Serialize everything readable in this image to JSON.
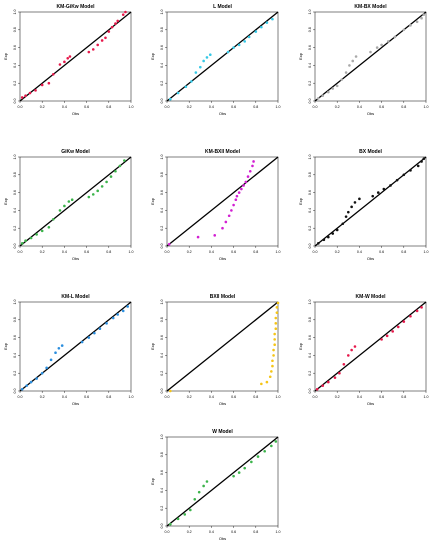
{
  "chart_data": [
    {
      "type": "scatter",
      "title": "KM-GiKw Model",
      "xlabel": "Obs",
      "ylabel": "Exp",
      "xlim": [
        0,
        1
      ],
      "ylim": [
        0,
        1
      ],
      "xticks": [
        "0.0",
        "0.2",
        "0.4",
        "0.6",
        "0.8",
        "1.0"
      ],
      "yticks": [
        "0.0",
        "0.2",
        "0.4",
        "0.6",
        "0.8",
        "1.0"
      ],
      "reference_line": "y = x",
      "color": "#e6194b",
      "points": [
        [
          0.02,
          0.04
        ],
        [
          0.05,
          0.06
        ],
        [
          0.09,
          0.09
        ],
        [
          0.14,
          0.12
        ],
        [
          0.2,
          0.18
        ],
        [
          0.26,
          0.2
        ],
        [
          0.3,
          0.3
        ],
        [
          0.36,
          0.41
        ],
        [
          0.4,
          0.44
        ],
        [
          0.43,
          0.48
        ],
        [
          0.45,
          0.5
        ],
        [
          0.62,
          0.55
        ],
        [
          0.66,
          0.58
        ],
        [
          0.7,
          0.63
        ],
        [
          0.74,
          0.68
        ],
        [
          0.77,
          0.71
        ],
        [
          0.8,
          0.78
        ],
        [
          0.83,
          0.83
        ],
        [
          0.86,
          0.87
        ],
        [
          0.88,
          0.9
        ],
        [
          0.93,
          0.97
        ],
        [
          0.95,
          1.0
        ]
      ]
    },
    {
      "type": "scatter",
      "title": "L Model",
      "xlabel": "Obs",
      "ylabel": "Exp",
      "xlim": [
        0,
        1
      ],
      "ylim": [
        0,
        1
      ],
      "xticks": [
        "0.0",
        "0.2",
        "0.4",
        "0.6",
        "0.8",
        "1.0"
      ],
      "yticks": [
        "0.0",
        "0.2",
        "0.4",
        "0.6",
        "0.8",
        "1.0"
      ],
      "reference_line": "y = x",
      "color": "#35c8e6",
      "points": [
        [
          0.03,
          0.02
        ],
        [
          0.1,
          0.09
        ],
        [
          0.17,
          0.16
        ],
        [
          0.22,
          0.22
        ],
        [
          0.26,
          0.32
        ],
        [
          0.3,
          0.38
        ],
        [
          0.33,
          0.45
        ],
        [
          0.36,
          0.49
        ],
        [
          0.39,
          0.52
        ],
        [
          0.55,
          0.55
        ],
        [
          0.6,
          0.6
        ],
        [
          0.65,
          0.63
        ],
        [
          0.7,
          0.67
        ],
        [
          0.74,
          0.72
        ],
        [
          0.8,
          0.78
        ],
        [
          0.85,
          0.83
        ],
        [
          0.9,
          0.88
        ],
        [
          0.95,
          0.92
        ]
      ]
    },
    {
      "type": "scatter",
      "title": "KM-BX Model",
      "xlabel": "Obs",
      "ylabel": "Exp",
      "xlim": [
        0,
        1
      ],
      "ylim": [
        0,
        1
      ],
      "xticks": [
        "0.0",
        "0.2",
        "0.4",
        "0.6",
        "0.8",
        "1.0"
      ],
      "yticks": [
        "0.0",
        "0.2",
        "0.4",
        "0.6",
        "0.8",
        "1.0"
      ],
      "reference_line": "y = x",
      "color": "#a9a9a9",
      "points": [
        [
          0.03,
          0.03
        ],
        [
          0.07,
          0.06
        ],
        [
          0.12,
          0.1
        ],
        [
          0.16,
          0.14
        ],
        [
          0.2,
          0.17
        ],
        [
          0.24,
          0.24
        ],
        [
          0.28,
          0.32
        ],
        [
          0.31,
          0.4
        ],
        [
          0.34,
          0.45
        ],
        [
          0.37,
          0.5
        ],
        [
          0.5,
          0.55
        ],
        [
          0.56,
          0.6
        ],
        [
          0.6,
          0.63
        ],
        [
          0.66,
          0.67
        ],
        [
          0.72,
          0.72
        ],
        [
          0.8,
          0.8
        ],
        [
          0.86,
          0.85
        ],
        [
          0.92,
          0.89
        ],
        [
          0.96,
          0.93
        ],
        [
          0.98,
          0.97
        ]
      ]
    },
    {
      "type": "scatter",
      "title": "GiKw Model",
      "xlabel": "Obs",
      "ylabel": "Exp",
      "xlim": [
        0,
        1
      ],
      "ylim": [
        0,
        1
      ],
      "xticks": [
        "0.0",
        "0.2",
        "0.4",
        "0.6",
        "0.8",
        "1.0"
      ],
      "yticks": [
        "0.0",
        "0.2",
        "0.4",
        "0.6",
        "0.8",
        "1.0"
      ],
      "reference_line": "y = x",
      "color": "#3cb44b",
      "points": [
        [
          0.02,
          0.03
        ],
        [
          0.05,
          0.06
        ],
        [
          0.1,
          0.09
        ],
        [
          0.15,
          0.13
        ],
        [
          0.2,
          0.17
        ],
        [
          0.26,
          0.21
        ],
        [
          0.3,
          0.3
        ],
        [
          0.36,
          0.4
        ],
        [
          0.4,
          0.45
        ],
        [
          0.44,
          0.5
        ],
        [
          0.47,
          0.52
        ],
        [
          0.62,
          0.55
        ],
        [
          0.66,
          0.58
        ],
        [
          0.7,
          0.62
        ],
        [
          0.74,
          0.67
        ],
        [
          0.78,
          0.72
        ],
        [
          0.82,
          0.78
        ],
        [
          0.86,
          0.84
        ],
        [
          0.9,
          0.9
        ],
        [
          0.94,
          0.96
        ]
      ]
    },
    {
      "type": "scatter",
      "title": "KM-BXII Model",
      "xlabel": "Obs",
      "ylabel": "Exp",
      "xlim": [
        0,
        1
      ],
      "ylim": [
        0,
        1
      ],
      "xticks": [
        "0.0",
        "0.2",
        "0.4",
        "0.6",
        "0.8",
        "1.0"
      ],
      "yticks": [
        "0.0",
        "0.2",
        "0.4",
        "0.6",
        "0.8",
        "1.0"
      ],
      "reference_line": "y = x",
      "color": "#d21fd2",
      "points": [
        [
          0.02,
          0.02
        ],
        [
          0.28,
          0.1
        ],
        [
          0.43,
          0.12
        ],
        [
          0.5,
          0.2
        ],
        [
          0.53,
          0.27
        ],
        [
          0.56,
          0.34
        ],
        [
          0.58,
          0.4
        ],
        [
          0.6,
          0.46
        ],
        [
          0.62,
          0.52
        ],
        [
          0.63,
          0.56
        ],
        [
          0.65,
          0.6
        ],
        [
          0.67,
          0.64
        ],
        [
          0.69,
          0.68
        ],
        [
          0.71,
          0.72
        ],
        [
          0.73,
          0.78
        ],
        [
          0.75,
          0.84
        ],
        [
          0.77,
          0.9
        ],
        [
          0.78,
          0.95
        ]
      ]
    },
    {
      "type": "scatter",
      "title": "BX Model",
      "xlabel": "Obs",
      "ylabel": "Exp",
      "xlim": [
        0,
        1
      ],
      "ylim": [
        0,
        1
      ],
      "xticks": [
        "0.0",
        "0.2",
        "0.4",
        "0.6",
        "0.8",
        "1.0"
      ],
      "yticks": [
        "0.0",
        "0.2",
        "0.4",
        "0.6",
        "0.8",
        "1.0"
      ],
      "reference_line": "y = x",
      "color": "#111111",
      "points": [
        [
          0.03,
          0.03
        ],
        [
          0.08,
          0.07
        ],
        [
          0.12,
          0.1
        ],
        [
          0.16,
          0.14
        ],
        [
          0.2,
          0.18
        ],
        [
          0.25,
          0.25
        ],
        [
          0.28,
          0.33
        ],
        [
          0.3,
          0.38
        ],
        [
          0.33,
          0.44
        ],
        [
          0.36,
          0.49
        ],
        [
          0.4,
          0.53
        ],
        [
          0.52,
          0.56
        ],
        [
          0.57,
          0.6
        ],
        [
          0.62,
          0.64
        ],
        [
          0.68,
          0.68
        ],
        [
          0.74,
          0.74
        ],
        [
          0.8,
          0.8
        ],
        [
          0.86,
          0.85
        ],
        [
          0.93,
          0.9
        ],
        [
          0.96,
          0.95
        ],
        [
          0.98,
          0.98
        ]
      ]
    },
    {
      "type": "scatter",
      "title": "KM-L Model",
      "xlabel": "Obs",
      "ylabel": "Exp",
      "xlim": [
        0,
        1
      ],
      "ylim": [
        0,
        1
      ],
      "xticks": [
        "0.0",
        "0.2",
        "0.4",
        "0.6",
        "0.8",
        "1.0"
      ],
      "yticks": [
        "0.0",
        "0.2",
        "0.4",
        "0.6",
        "0.8",
        "1.0"
      ],
      "reference_line": "y = x",
      "color": "#2b8ede",
      "points": [
        [
          0.02,
          0.02
        ],
        [
          0.06,
          0.06
        ],
        [
          0.1,
          0.1
        ],
        [
          0.15,
          0.14
        ],
        [
          0.2,
          0.2
        ],
        [
          0.24,
          0.26
        ],
        [
          0.28,
          0.35
        ],
        [
          0.32,
          0.43
        ],
        [
          0.35,
          0.48
        ],
        [
          0.38,
          0.51
        ],
        [
          0.56,
          0.55
        ],
        [
          0.62,
          0.6
        ],
        [
          0.67,
          0.65
        ],
        [
          0.72,
          0.7
        ],
        [
          0.78,
          0.76
        ],
        [
          0.84,
          0.82
        ],
        [
          0.88,
          0.86
        ],
        [
          0.93,
          0.9
        ],
        [
          0.97,
          0.95
        ]
      ]
    },
    {
      "type": "scatter",
      "title": "BXII Model",
      "xlabel": "Obs",
      "ylabel": "Exp",
      "xlim": [
        0,
        1
      ],
      "ylim": [
        0,
        1
      ],
      "xticks": [
        "0.0",
        "0.2",
        "0.4",
        "0.6",
        "0.8",
        "1.0"
      ],
      "yticks": [
        "0.0",
        "0.2",
        "0.4",
        "0.6",
        "0.8",
        "1.0"
      ],
      "reference_line": "y = x",
      "color": "#f5c518",
      "points": [
        [
          0.03,
          0.0
        ],
        [
          0.85,
          0.08
        ],
        [
          0.9,
          0.1
        ],
        [
          0.93,
          0.16
        ],
        [
          0.94,
          0.22
        ],
        [
          0.95,
          0.28
        ],
        [
          0.95,
          0.34
        ],
        [
          0.96,
          0.4
        ],
        [
          0.96,
          0.46
        ],
        [
          0.97,
          0.52
        ],
        [
          0.97,
          0.58
        ],
        [
          0.97,
          0.64
        ],
        [
          0.98,
          0.7
        ],
        [
          0.98,
          0.76
        ],
        [
          0.98,
          0.82
        ],
        [
          0.99,
          0.88
        ],
        [
          0.99,
          0.94
        ],
        [
          1.0,
          0.99
        ]
      ]
    },
    {
      "type": "scatter",
      "title": "KM-W Model",
      "xlabel": "Obs",
      "ylabel": "Exp",
      "xlim": [
        0,
        1
      ],
      "ylim": [
        0,
        1
      ],
      "xticks": [
        "0.0",
        "0.2",
        "0.4",
        "0.6",
        "0.8",
        "1.0"
      ],
      "yticks": [
        "0.0",
        "0.2",
        "0.4",
        "0.6",
        "0.8",
        "1.0"
      ],
      "reference_line": "y = x",
      "color": "#e6194b",
      "points": [
        [
          0.02,
          0.02
        ],
        [
          0.07,
          0.06
        ],
        [
          0.12,
          0.1
        ],
        [
          0.18,
          0.15
        ],
        [
          0.22,
          0.2
        ],
        [
          0.26,
          0.3
        ],
        [
          0.3,
          0.4
        ],
        [
          0.33,
          0.46
        ],
        [
          0.36,
          0.5
        ],
        [
          0.6,
          0.58
        ],
        [
          0.65,
          0.62
        ],
        [
          0.7,
          0.67
        ],
        [
          0.75,
          0.72
        ],
        [
          0.8,
          0.78
        ],
        [
          0.86,
          0.84
        ],
        [
          0.92,
          0.9
        ],
        [
          0.96,
          0.94
        ]
      ]
    },
    {
      "type": "scatter",
      "title": "W Model",
      "xlabel": "Obs",
      "ylabel": "Exp",
      "xlim": [
        0,
        1
      ],
      "ylim": [
        0,
        1
      ],
      "xticks": [
        "0.0",
        "0.2",
        "0.4",
        "0.6",
        "0.8",
        "1.0"
      ],
      "yticks": [
        "0.0",
        "0.2",
        "0.4",
        "0.6",
        "0.8",
        "1.0"
      ],
      "reference_line": "y = x",
      "color": "#3cb44b",
      "points": [
        [
          0.03,
          0.02
        ],
        [
          0.1,
          0.08
        ],
        [
          0.16,
          0.13
        ],
        [
          0.21,
          0.18
        ],
        [
          0.25,
          0.3
        ],
        [
          0.29,
          0.38
        ],
        [
          0.33,
          0.45
        ],
        [
          0.36,
          0.5
        ],
        [
          0.6,
          0.56
        ],
        [
          0.65,
          0.6
        ],
        [
          0.7,
          0.65
        ],
        [
          0.76,
          0.72
        ],
        [
          0.82,
          0.78
        ],
        [
          0.88,
          0.84
        ],
        [
          0.94,
          0.9
        ],
        [
          0.98,
          0.95
        ]
      ]
    }
  ]
}
